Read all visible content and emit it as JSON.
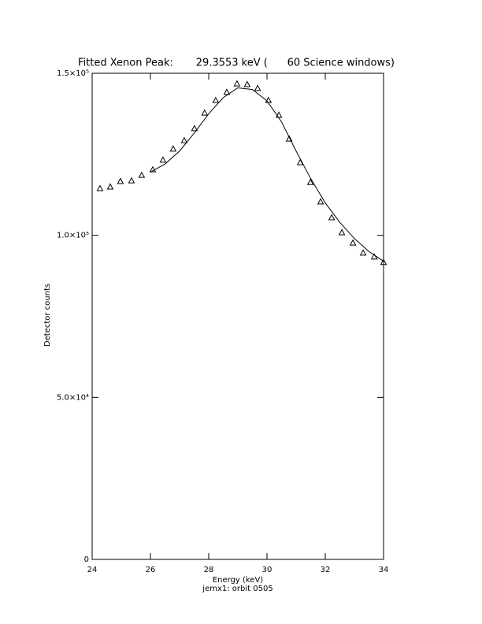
{
  "chart_data": {
    "type": "scatter",
    "title": "Fitted Xenon Peak:       29.3553 keV (      60 Science windows)",
    "xlabel": "Energy (keV)",
    "subtitle": "jemx1: orbit 0505",
    "ylabel": "Detector counts",
    "xlim": [
      24,
      34
    ],
    "ylim": [
      0,
      150000
    ],
    "xticks": [
      24,
      26,
      28,
      30,
      32,
      34
    ],
    "yticks": [
      0,
      {
        "value": 50000,
        "label": "5.0×10⁴"
      },
      {
        "value": 100000,
        "label": "1.0×10⁵"
      },
      {
        "value": 150000,
        "label": "1.5×10⁵"
      }
    ],
    "series": [
      {
        "color": "#000000",
        "marker": "triangle",
        "x": [
          24.27,
          24.62,
          24.97,
          25.35,
          25.7,
          26.08,
          26.43,
          26.78,
          27.16,
          27.51,
          27.86,
          28.24,
          28.62,
          28.97,
          29.32,
          29.68,
          30.05,
          30.41,
          30.76,
          31.14,
          31.49,
          31.84,
          32.22,
          32.57,
          32.95,
          33.3,
          33.68,
          34.0
        ],
        "values": [
          114500,
          115000,
          116700,
          116900,
          118600,
          120300,
          123300,
          126700,
          129300,
          133000,
          137800,
          141700,
          144200,
          146800,
          146600,
          145400,
          141700,
          137100,
          129800,
          122500,
          116400,
          110400,
          105500,
          100900,
          97700,
          94600,
          93400,
          91700
        ]
      },
      {
        "color": "#000000",
        "marker": "line",
        "x": [
          26.0,
          26.5,
          27.0,
          27.5,
          28.0,
          28.5,
          29.0,
          29.5,
          30.0,
          30.5,
          31.0,
          31.5,
          32.0,
          32.5,
          33.0,
          33.5,
          34.0
        ],
        "values": [
          119500,
          122000,
          126000,
          131500,
          137500,
          142500,
          145500,
          145000,
          141500,
          135000,
          126000,
          117500,
          110000,
          104000,
          99000,
          95000,
          92000
        ]
      }
    ]
  }
}
